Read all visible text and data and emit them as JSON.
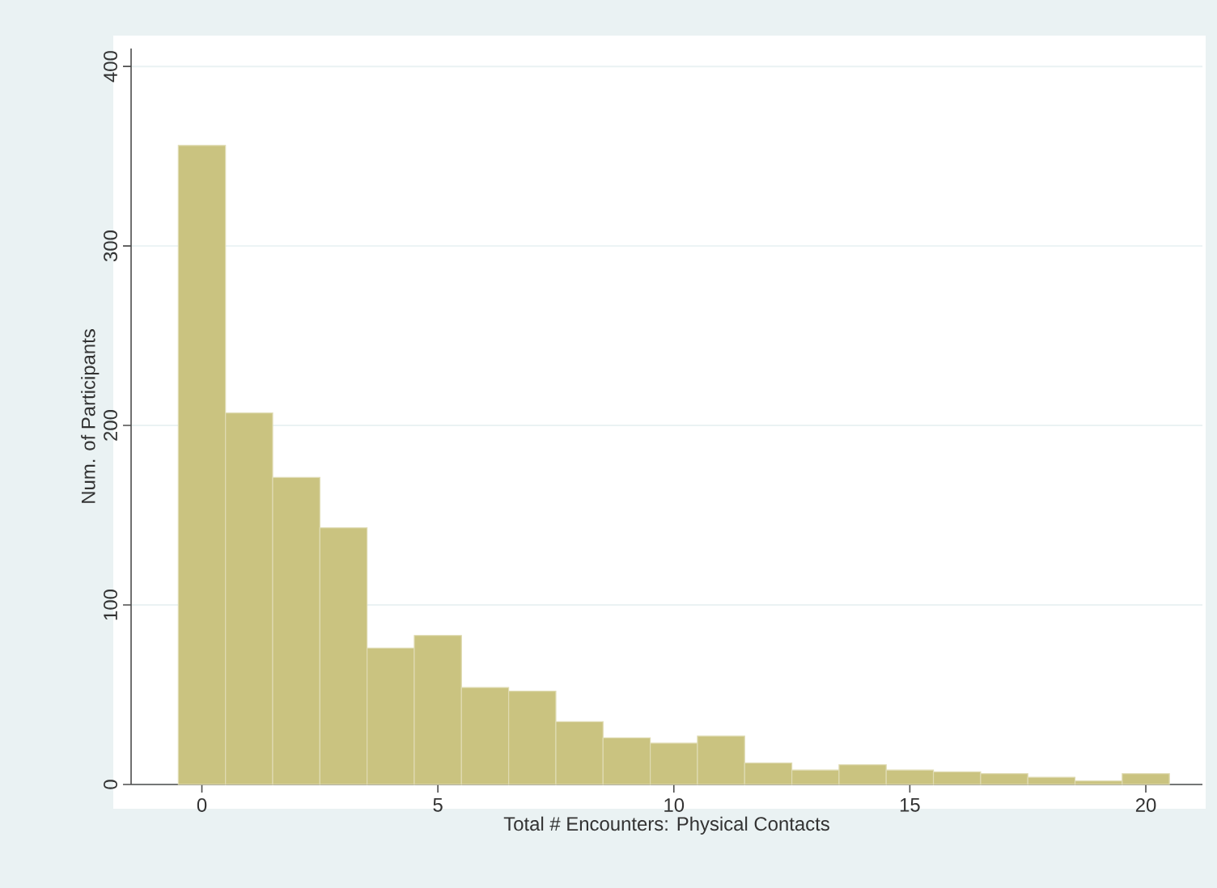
{
  "chart_data": {
    "type": "histogram",
    "xlabel": "Total # Encounters: Physical Contacts",
    "ylabel": "Num. of Participants",
    "bins": [
      -0.5,
      0.5,
      1.5,
      2.5,
      3.5,
      4.5,
      5.5,
      6.5,
      7.5,
      8.5,
      9.5,
      10.5,
      11.5,
      12.5,
      13.5,
      14.5,
      15.5,
      16.5,
      17.5,
      18.5,
      19.5,
      20.5
    ],
    "values": [
      356,
      207,
      171,
      143,
      76,
      83,
      54,
      52,
      35,
      26,
      23,
      27,
      12,
      8,
      11,
      8,
      7,
      6,
      4,
      2,
      6
    ],
    "color": "#cac380",
    "xlim": [
      -1.5,
      21.2
    ],
    "ylim": [
      0,
      410
    ],
    "xticks": [
      0,
      5,
      10,
      15,
      20
    ],
    "yticks": [
      0,
      100,
      200,
      300,
      400
    ],
    "grid": "y"
  }
}
